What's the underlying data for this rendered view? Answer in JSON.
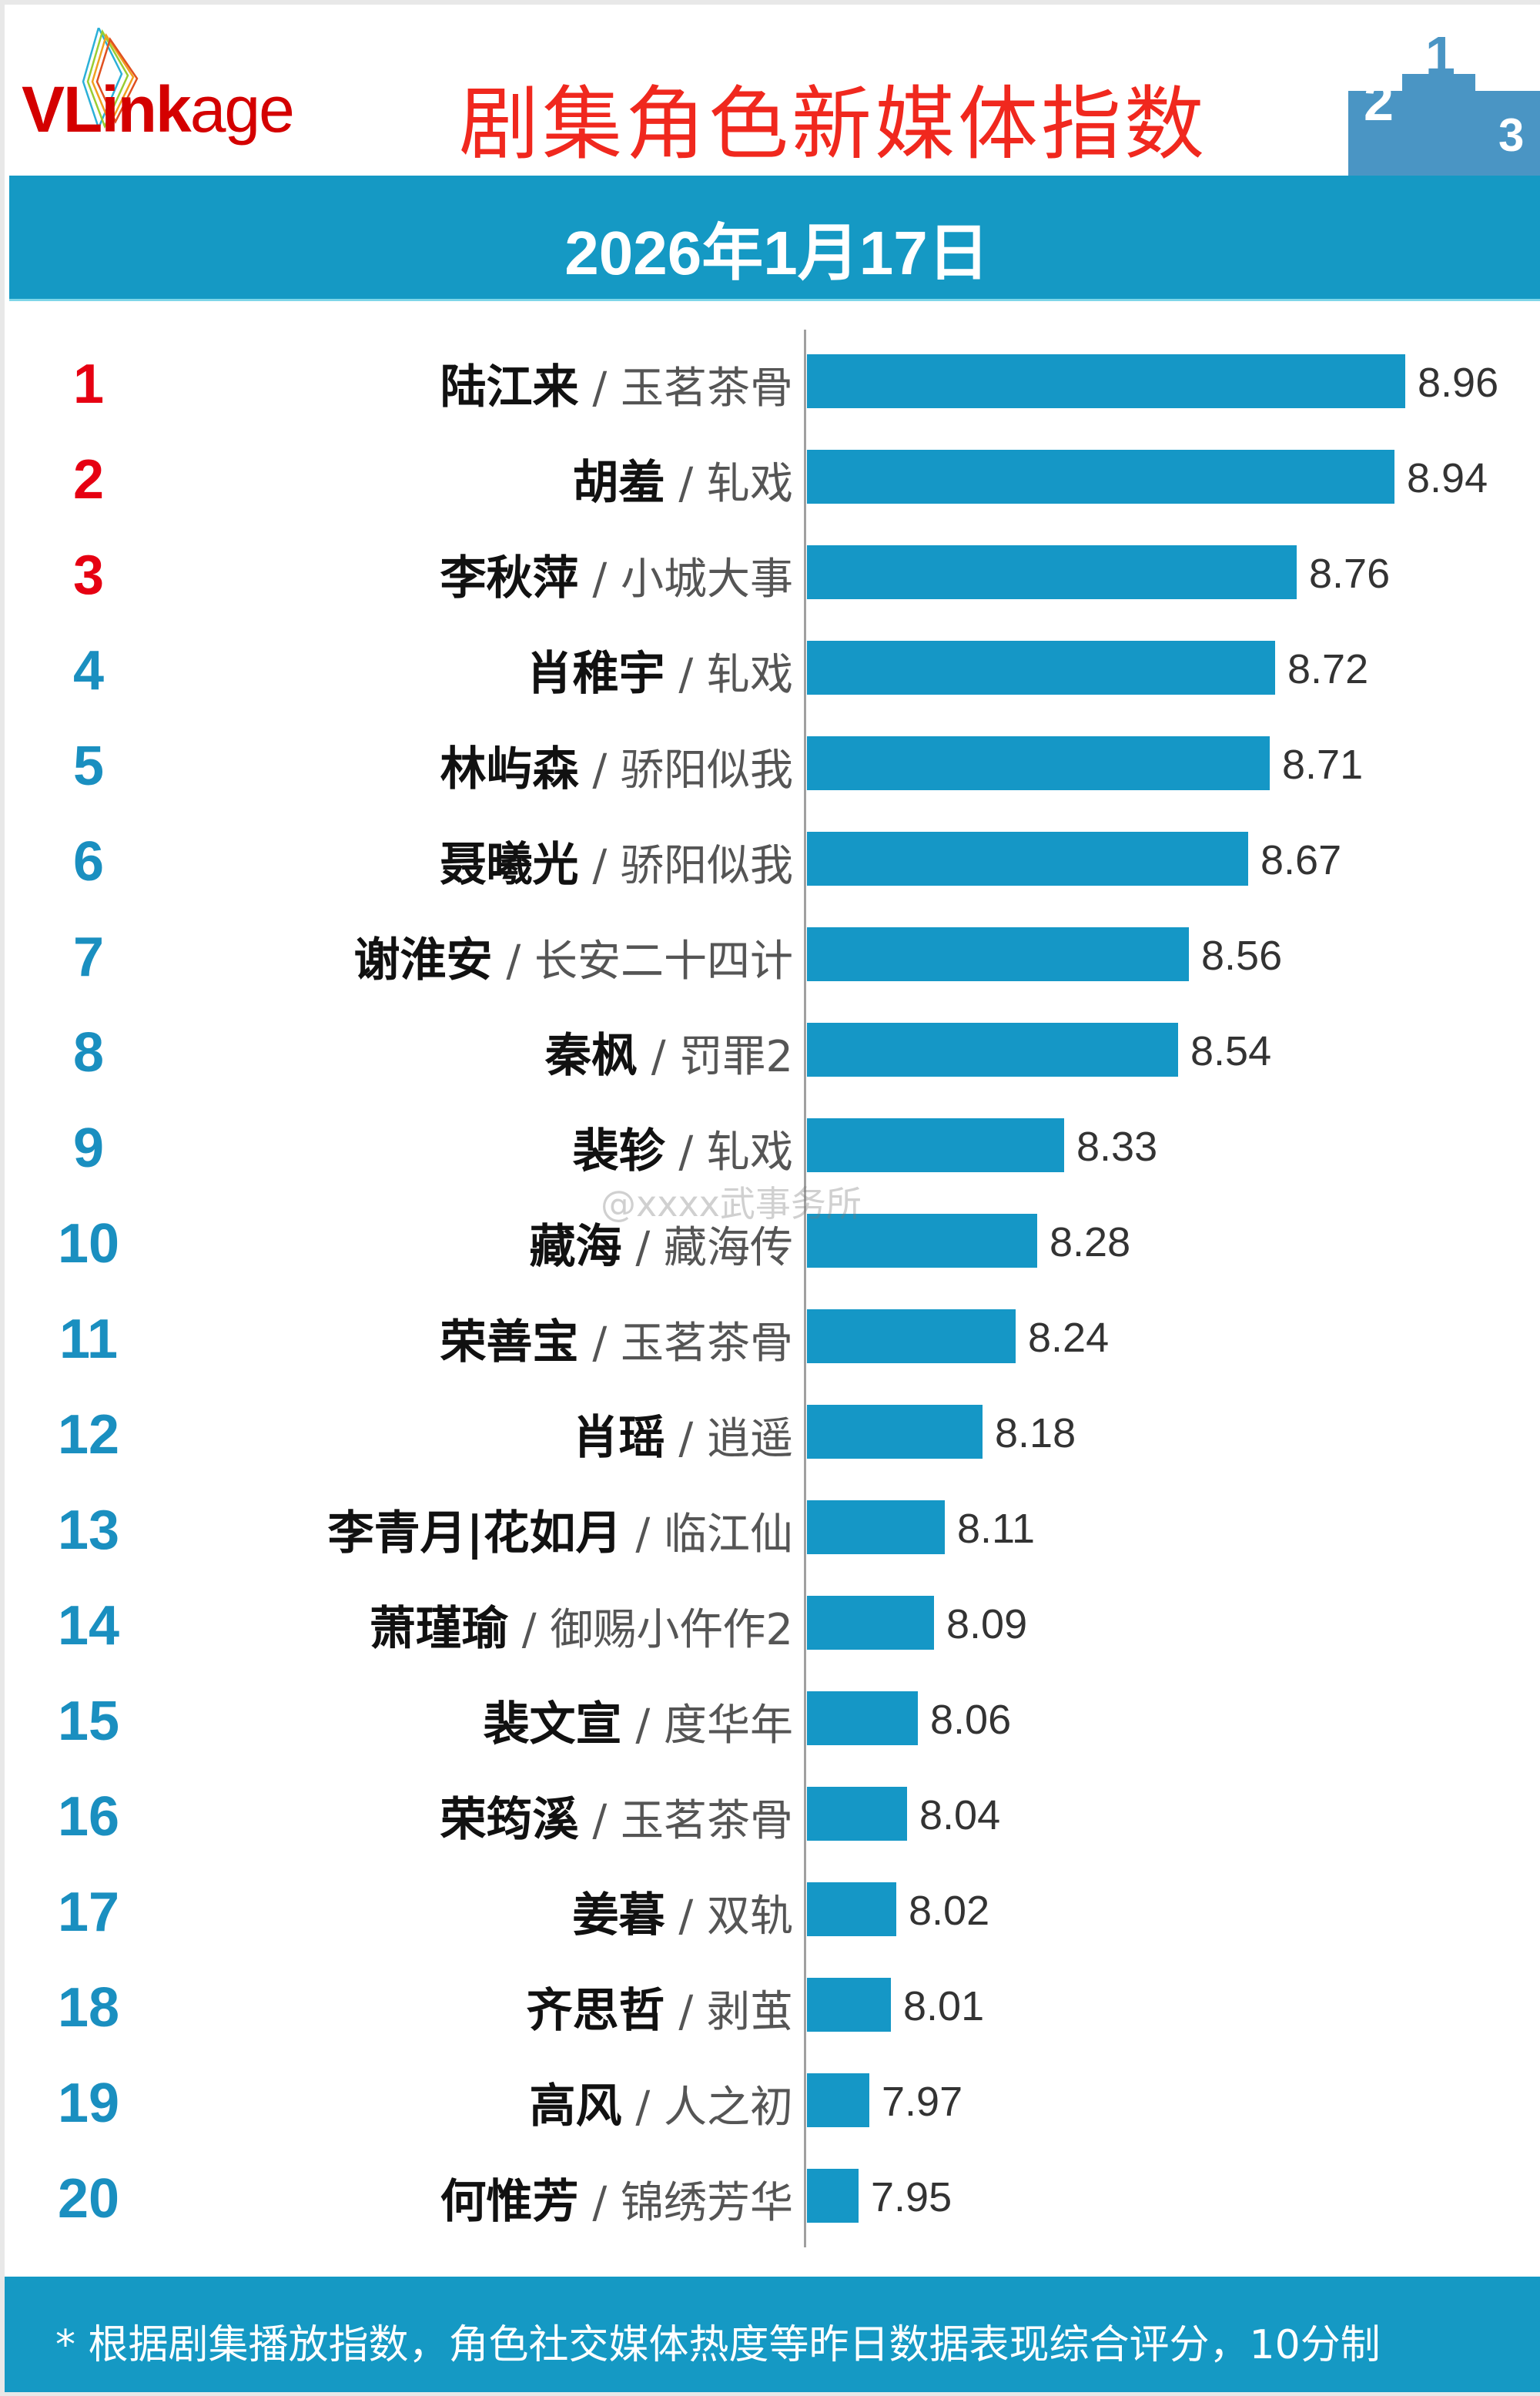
{
  "header": {
    "logo": "VLinkage",
    "title": "剧集角色新媒体指数",
    "date": "2026年1月17日"
  },
  "colors": {
    "top3_rank": "#e60012",
    "rank": "#1a8fc0",
    "bar": "#1597c6",
    "band": "#1599c4",
    "title": "#f0281e"
  },
  "watermark": "@xxxx武事务所",
  "footer": {
    "note": "* 根据剧集播放指数，角色社交媒体热度等昨日数据表现综合评分，10分制"
  },
  "chart_data": {
    "type": "bar",
    "orientation": "horizontal",
    "title": "剧集角色新媒体指数",
    "grid": false,
    "rows": [
      {
        "rank": "1",
        "name": "陆江来",
        "show": "玉茗茶骨",
        "value": 8.96
      },
      {
        "rank": "2",
        "name": "胡羞",
        "show": "轧戏",
        "value": 8.94
      },
      {
        "rank": "3",
        "name": "李秋萍",
        "show": "小城大事",
        "value": 8.76
      },
      {
        "rank": "4",
        "name": "肖稚宇",
        "show": "轧戏",
        "value": 8.72
      },
      {
        "rank": "5",
        "name": "林屿森",
        "show": "骄阳似我",
        "value": 8.71
      },
      {
        "rank": "6",
        "name": "聂曦光",
        "show": "骄阳似我",
        "value": 8.67
      },
      {
        "rank": "7",
        "name": "谢淮安",
        "show": "长安二十四计",
        "value": 8.56
      },
      {
        "rank": "8",
        "name": "秦枫",
        "show": "罚罪2",
        "value": 8.54
      },
      {
        "rank": "9",
        "name": "裴轸",
        "show": "轧戏",
        "value": 8.33
      },
      {
        "rank": "10",
        "name": "藏海",
        "show": "藏海传",
        "value": 8.28
      },
      {
        "rank": "11",
        "name": "荣善宝",
        "show": "玉茗茶骨",
        "value": 8.24
      },
      {
        "rank": "12",
        "name": "肖瑶",
        "show": "逍遥",
        "value": 8.18
      },
      {
        "rank": "13",
        "name": "李青月|花如月",
        "show": "临江仙",
        "value": 8.11
      },
      {
        "rank": "14",
        "name": "萧瑾瑜",
        "show": "御赐小仵作2",
        "value": 8.09
      },
      {
        "rank": "15",
        "name": "裴文宣",
        "show": "度华年",
        "value": 8.06
      },
      {
        "rank": "16",
        "name": "荣筠溪",
        "show": "玉茗茶骨",
        "value": 8.04
      },
      {
        "rank": "17",
        "name": "姜暮",
        "show": "双轨",
        "value": 8.02
      },
      {
        "rank": "18",
        "name": "齐思哲",
        "show": "剥茧",
        "value": 8.01
      },
      {
        "rank": "19",
        "name": "高风",
        "show": "人之初",
        "value": 7.97
      },
      {
        "rank": "20",
        "name": "何惟芳",
        "show": "锦绣芳华",
        "value": 7.95
      }
    ]
  }
}
